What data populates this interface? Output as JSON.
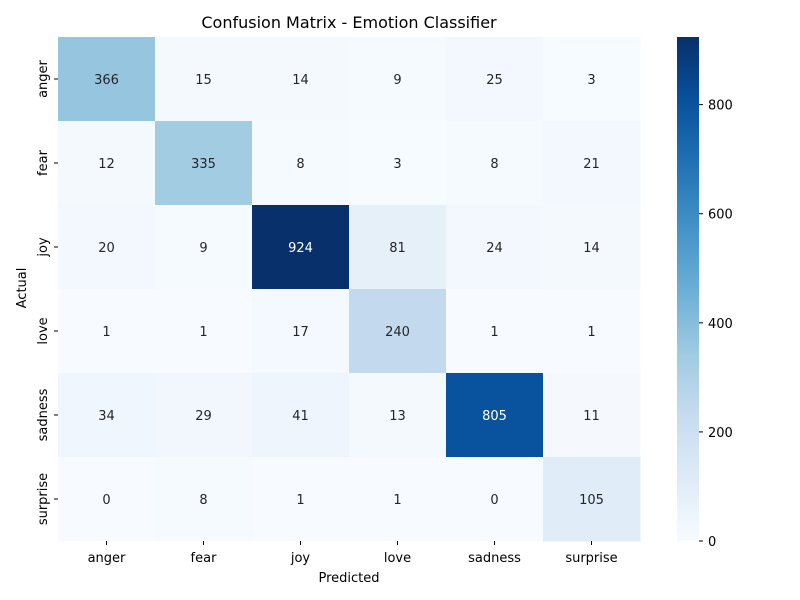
{
  "chart_data": {
    "type": "heatmap",
    "title": "Confusion Matrix - Emotion Classifier",
    "xlabel": "Predicted",
    "ylabel": "Actual",
    "x_categories": [
      "anger",
      "fear",
      "joy",
      "love",
      "sadness",
      "surprise"
    ],
    "y_categories": [
      "anger",
      "fear",
      "joy",
      "love",
      "sadness",
      "surprise"
    ],
    "values": [
      [
        366,
        15,
        14,
        9,
        25,
        3
      ],
      [
        12,
        335,
        8,
        3,
        8,
        21
      ],
      [
        20,
        9,
        924,
        81,
        24,
        14
      ],
      [
        1,
        1,
        17,
        240,
        1,
        1
      ],
      [
        34,
        29,
        41,
        13,
        805,
        11
      ],
      [
        0,
        8,
        1,
        1,
        0,
        105
      ]
    ],
    "colorscale": "Blues",
    "vmin": 0,
    "vmax": 924,
    "colorbar_ticks": [
      0,
      200,
      400,
      600,
      800
    ],
    "grid": false
  }
}
